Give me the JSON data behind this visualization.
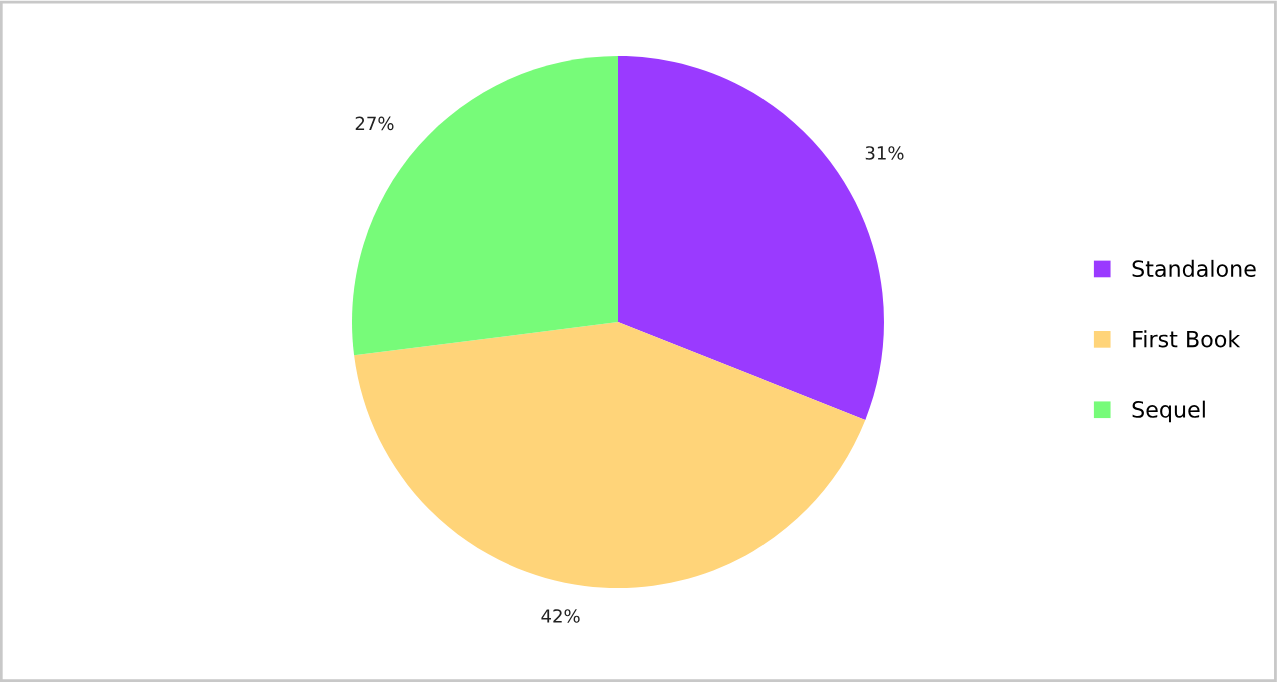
{
  "chart_data": {
    "type": "pie",
    "categories": [
      "Standalone",
      "First Book",
      "Sequel"
    ],
    "values": [
      31,
      42,
      27
    ],
    "colors": [
      "#9a3aff",
      "#ffd479",
      "#77fb79"
    ],
    "value_labels": [
      "31%",
      "42%",
      "27%"
    ],
    "legend": "right"
  }
}
